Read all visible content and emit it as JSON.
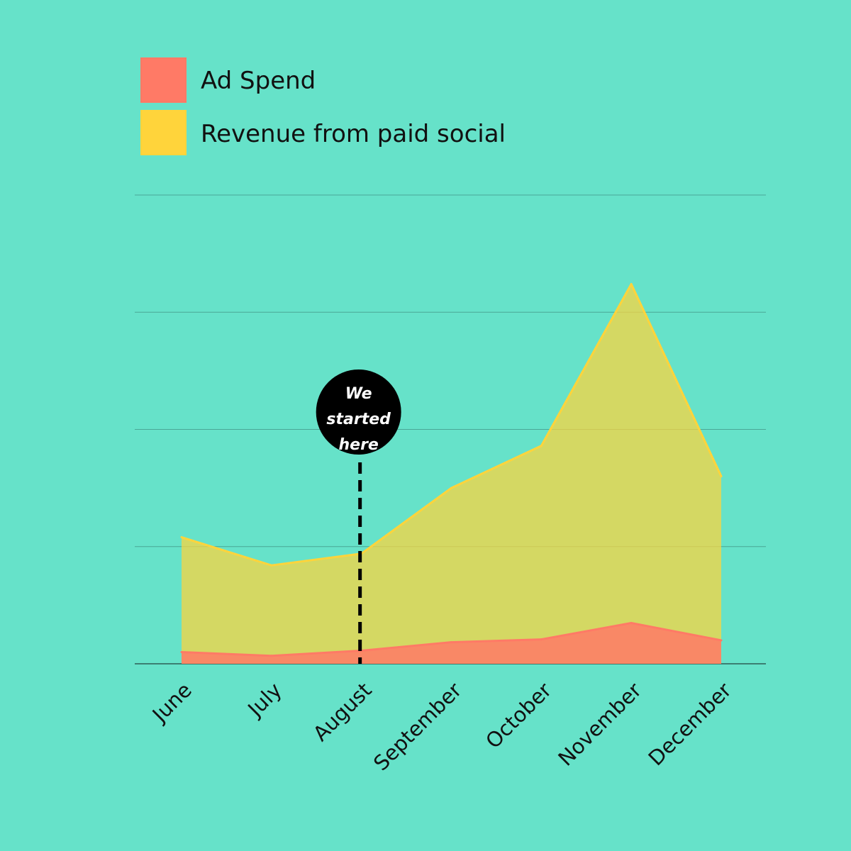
{
  "colors": {
    "background": "#66E2C9",
    "ad_spend": "#FF7A66",
    "revenue": "#FFD43B",
    "gridline": "#3E8F80",
    "annotation_bg": "#000000",
    "annotation_text": "#FFFFFF"
  },
  "chart_data": {
    "type": "area",
    "categories": [
      "June",
      "July",
      "August",
      "September",
      "October",
      "November",
      "December"
    ],
    "ylim": [
      0,
      100
    ],
    "grid": true,
    "legend_position": "top-left",
    "series": [
      {
        "name": "Revenue from paid social",
        "color": "#FFD43B",
        "values": [
          27,
          21,
          23.5,
          37.5,
          46.5,
          81,
          40
        ]
      },
      {
        "name": "Ad Spend",
        "color": "#FF7A66",
        "values": [
          2.5,
          1.7,
          2.8,
          4.6,
          5.2,
          8.7,
          5
        ]
      }
    ],
    "annotation": {
      "category": "August",
      "lines": [
        "We",
        "started",
        "here"
      ]
    }
  }
}
